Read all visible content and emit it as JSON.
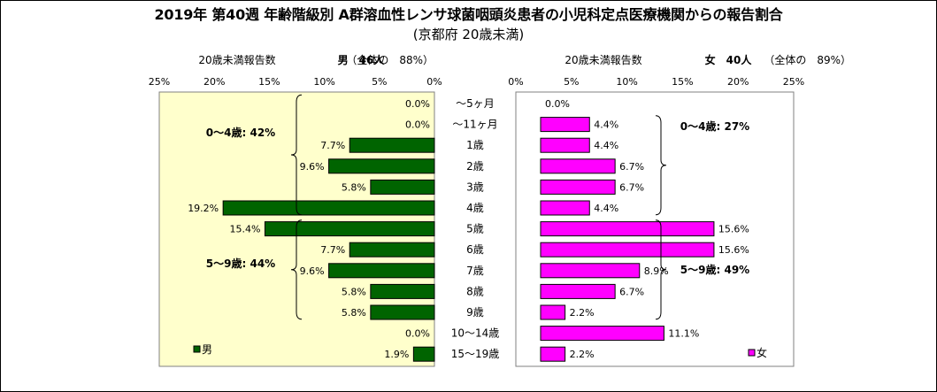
{
  "title": "2019年 第40週 年齢階級別 A群溶血性レンサ球菌咽頭炎患者の小児科定点医療機関からの報告割合",
  "subtitle": "(京都府 20歳未満)",
  "chart_data": {
    "type": "bar",
    "orientation": "horizontal-population-pyramid",
    "categories": [
      "～5ヶ月",
      "～11ヶ月",
      "1歳",
      "2歳",
      "3歳",
      "4歳",
      "5歳",
      "6歳",
      "7歳",
      "8歳",
      "9歳",
      "10～14歳",
      "15～19歳"
    ],
    "series": [
      {
        "name": "男",
        "side": "left",
        "color": "#006400",
        "values": [
          0.0,
          0.0,
          7.7,
          9.6,
          5.8,
          19.2,
          15.4,
          7.7,
          9.6,
          5.8,
          5.8,
          0.0,
          1.9
        ],
        "value_labels": [
          "0.0%",
          "0.0%",
          "7.7%",
          "9.6%",
          "5.8%",
          "19.2%",
          "15.4%",
          "7.7%",
          "9.6%",
          "5.8%",
          "5.8%",
          "0.0%",
          "1.9%"
        ],
        "header_label": "20歳未満報告数",
        "header_value": "男　46人",
        "header_ratio": "（全体の　88%）",
        "groups": [
          {
            "label": "0～4歳: 42%",
            "from": 0,
            "to": 5
          },
          {
            "label": "5～9歳: 44%",
            "from": 6,
            "to": 10
          }
        ]
      },
      {
        "name": "女",
        "side": "right",
        "color": "#ff00ff",
        "values": [
          0.0,
          4.4,
          4.4,
          6.7,
          6.7,
          4.4,
          15.6,
          15.6,
          8.9,
          6.7,
          2.2,
          11.1,
          2.2
        ],
        "value_labels": [
          "0.0%",
          "4.4%",
          "4.4%",
          "6.7%",
          "6.7%",
          "4.4%",
          "15.6%",
          "15.6%",
          "8.9%",
          "6.7%",
          "2.2%",
          "11.1%",
          "2.2%"
        ],
        "header_label": "20歳未満報告数",
        "header_value": "女　40人",
        "header_ratio": "（全体の　89%）",
        "groups": [
          {
            "label": "0～4歳: 27%",
            "from": 1,
            "to": 5
          },
          {
            "label": "5～9歳: 49%",
            "from": 6,
            "to": 10
          }
        ]
      }
    ],
    "xlim": [
      0,
      25
    ],
    "ticks": [
      0,
      5,
      10,
      15,
      20,
      25
    ],
    "tick_labels_left": [
      "0%",
      "5%",
      "10%",
      "15%",
      "20%",
      "25%"
    ],
    "tick_labels_right": [
      "0%",
      "5%",
      "10%",
      "15%",
      "20%",
      "25%"
    ],
    "grid": false,
    "legend": [
      {
        "label": "男",
        "color": "#006400",
        "position": "bottom-left"
      },
      {
        "label": "女",
        "color": "#ff00ff",
        "position": "bottom-right"
      }
    ]
  }
}
